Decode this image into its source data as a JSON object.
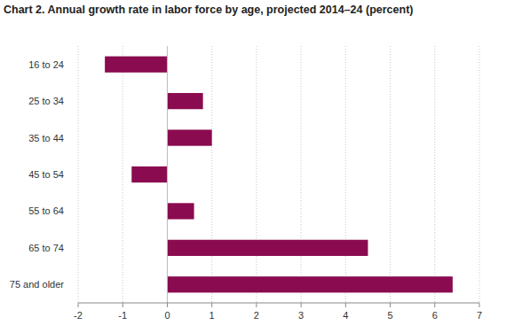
{
  "chart_data": {
    "type": "bar",
    "orientation": "horizontal",
    "title": "Chart 2. Annual growth rate in labor force by age, projected 2014–24 (percent)",
    "categories": [
      "16 to 24",
      "25 to 34",
      "35 to 44",
      "45 to 54",
      "55 to 64",
      "65 to 74",
      "75 and older"
    ],
    "values": [
      -1.4,
      0.8,
      1.0,
      -0.8,
      0.6,
      4.5,
      6.4
    ],
    "color": "#8a0b4f",
    "xlim": [
      -2,
      7
    ],
    "xticks": [
      -2,
      -1,
      0,
      1,
      2,
      3,
      4,
      5,
      6,
      7
    ],
    "grid": true
  }
}
